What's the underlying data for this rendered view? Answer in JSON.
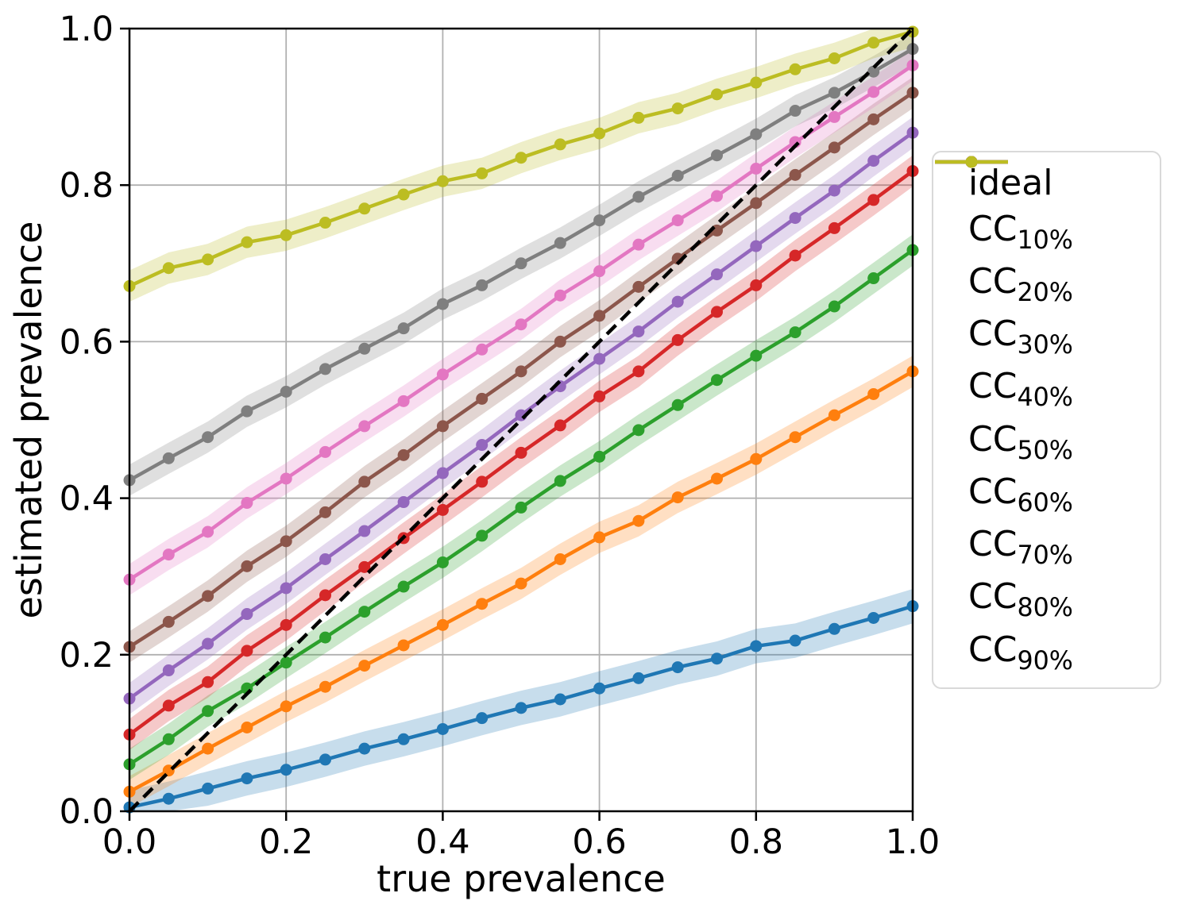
{
  "chart_data": {
    "type": "line",
    "title": "",
    "xlabel": "true prevalence",
    "ylabel": "estimated prevalence",
    "xlim": [
      0.0,
      1.0
    ],
    "ylim": [
      0.0,
      1.0
    ],
    "grid": true,
    "grid_color": "#b0b0b0",
    "legend_position": "outside-right",
    "x_tick_labels": [
      "0.0",
      "0.2",
      "0.4",
      "0.6",
      "0.8",
      "1.0"
    ],
    "y_tick_labels": [
      "0.0",
      "0.2",
      "0.4",
      "0.6",
      "0.8",
      "1.0"
    ],
    "x": [
      0.0,
      0.05,
      0.1,
      0.15,
      0.2,
      0.25,
      0.3,
      0.35,
      0.4,
      0.45,
      0.5,
      0.55,
      0.6,
      0.65,
      0.7,
      0.75,
      0.8,
      0.85,
      0.9,
      0.95,
      1.0
    ],
    "ideal": {
      "label": "ideal",
      "style": "dashed",
      "color": "#000000",
      "x": [
        0.0,
        1.0
      ],
      "y": [
        0.0,
        1.0
      ]
    },
    "series": [
      {
        "label_main": "CC",
        "label_sub": "10%",
        "color": "#1f77b4",
        "band_halfwidth": 0.022,
        "values": [
          0.005,
          0.016,
          0.029,
          0.042,
          0.053,
          0.066,
          0.08,
          0.092,
          0.105,
          0.119,
          0.132,
          0.143,
          0.157,
          0.17,
          0.184,
          0.195,
          0.211,
          0.218,
          0.233,
          0.247,
          0.262
        ]
      },
      {
        "label_main": "CC",
        "label_sub": "20%",
        "color": "#ff7f0e",
        "band_halfwidth": 0.02,
        "values": [
          0.025,
          0.052,
          0.08,
          0.107,
          0.134,
          0.159,
          0.186,
          0.212,
          0.238,
          0.265,
          0.291,
          0.322,
          0.35,
          0.371,
          0.401,
          0.425,
          0.45,
          0.478,
          0.506,
          0.533,
          0.562
        ]
      },
      {
        "label_main": "CC",
        "label_sub": "30%",
        "color": "#2ca02c",
        "band_halfwidth": 0.02,
        "values": [
          0.06,
          0.092,
          0.128,
          0.157,
          0.19,
          0.222,
          0.255,
          0.287,
          0.318,
          0.352,
          0.388,
          0.422,
          0.453,
          0.487,
          0.519,
          0.551,
          0.582,
          0.612,
          0.645,
          0.681,
          0.717
        ]
      },
      {
        "label_main": "CC",
        "label_sub": "40%",
        "color": "#d62728",
        "band_halfwidth": 0.02,
        "values": [
          0.098,
          0.135,
          0.165,
          0.205,
          0.238,
          0.276,
          0.312,
          0.349,
          0.385,
          0.421,
          0.458,
          0.493,
          0.53,
          0.562,
          0.602,
          0.638,
          0.672,
          0.71,
          0.745,
          0.781,
          0.818
        ]
      },
      {
        "label_main": "CC",
        "label_sub": "50%",
        "color": "#9467bd",
        "band_halfwidth": 0.02,
        "values": [
          0.144,
          0.18,
          0.214,
          0.252,
          0.285,
          0.322,
          0.358,
          0.395,
          0.432,
          0.468,
          0.506,
          0.543,
          0.578,
          0.613,
          0.651,
          0.686,
          0.722,
          0.758,
          0.793,
          0.831,
          0.867
        ]
      },
      {
        "label_main": "CC",
        "label_sub": "60%",
        "color": "#8c564b",
        "band_halfwidth": 0.02,
        "values": [
          0.21,
          0.242,
          0.275,
          0.313,
          0.345,
          0.382,
          0.421,
          0.455,
          0.492,
          0.527,
          0.562,
          0.6,
          0.633,
          0.67,
          0.706,
          0.742,
          0.777,
          0.813,
          0.848,
          0.884,
          0.918
        ]
      },
      {
        "label_main": "CC",
        "label_sub": "70%",
        "color": "#e377c2",
        "band_halfwidth": 0.02,
        "values": [
          0.296,
          0.328,
          0.357,
          0.394,
          0.425,
          0.459,
          0.492,
          0.524,
          0.558,
          0.59,
          0.622,
          0.659,
          0.69,
          0.724,
          0.755,
          0.786,
          0.821,
          0.855,
          0.887,
          0.919,
          0.953
        ]
      },
      {
        "label_main": "CC",
        "label_sub": "80%",
        "color": "#7f7f7f",
        "band_halfwidth": 0.02,
        "values": [
          0.423,
          0.451,
          0.478,
          0.511,
          0.536,
          0.565,
          0.591,
          0.617,
          0.648,
          0.672,
          0.7,
          0.726,
          0.755,
          0.785,
          0.812,
          0.838,
          0.865,
          0.895,
          0.918,
          0.945,
          0.974
        ]
      },
      {
        "label_main": "CC",
        "label_sub": "90%",
        "color": "#bcbd22",
        "band_halfwidth": 0.02,
        "values": [
          0.671,
          0.694,
          0.705,
          0.727,
          0.736,
          0.752,
          0.77,
          0.788,
          0.805,
          0.815,
          0.835,
          0.852,
          0.866,
          0.886,
          0.898,
          0.916,
          0.931,
          0.948,
          0.962,
          0.982,
          0.996
        ]
      }
    ]
  }
}
